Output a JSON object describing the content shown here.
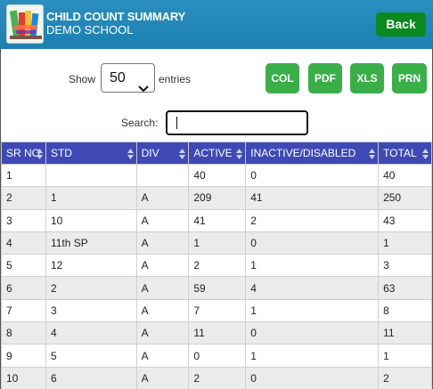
{
  "header": {
    "title": "CHILD COUNT SUMMARY",
    "school": "DEMO SCHOOL",
    "back_label": "Back",
    "color": "#1c7fb1"
  },
  "controls": {
    "show_label": "Show",
    "entries_value": "50",
    "entries_label": "entries",
    "search_label": "Search:",
    "search_value": "",
    "buttons": [
      "COL",
      "PDF",
      "XLS",
      "PRN"
    ],
    "button_color": "#3aae48"
  },
  "table": {
    "header_color": "#3f49b5",
    "columns": [
      "SR NO",
      "STD",
      "DIV",
      "ACTIVE",
      "INACTIVE/DISABLED",
      "TOTAL"
    ],
    "rows": [
      [
        "1",
        "",
        "",
        "40",
        "0",
        "40"
      ],
      [
        "2",
        "1",
        "A",
        "209",
        "41",
        "250"
      ],
      [
        "3",
        "10",
        "A",
        "41",
        "2",
        "43"
      ],
      [
        "4",
        "11th SP",
        "A",
        "1",
        "0",
        "1"
      ],
      [
        "5",
        "12",
        "A",
        "2",
        "1",
        "3"
      ],
      [
        "6",
        "2",
        "A",
        "59",
        "4",
        "63"
      ],
      [
        "7",
        "3",
        "A",
        "7",
        "1",
        "8"
      ],
      [
        "8",
        "4",
        "A",
        "11",
        "0",
        "11"
      ],
      [
        "9",
        "5",
        "A",
        "0",
        "1",
        "1"
      ],
      [
        "10",
        "6",
        "A",
        "2",
        "0",
        "2"
      ]
    ]
  }
}
